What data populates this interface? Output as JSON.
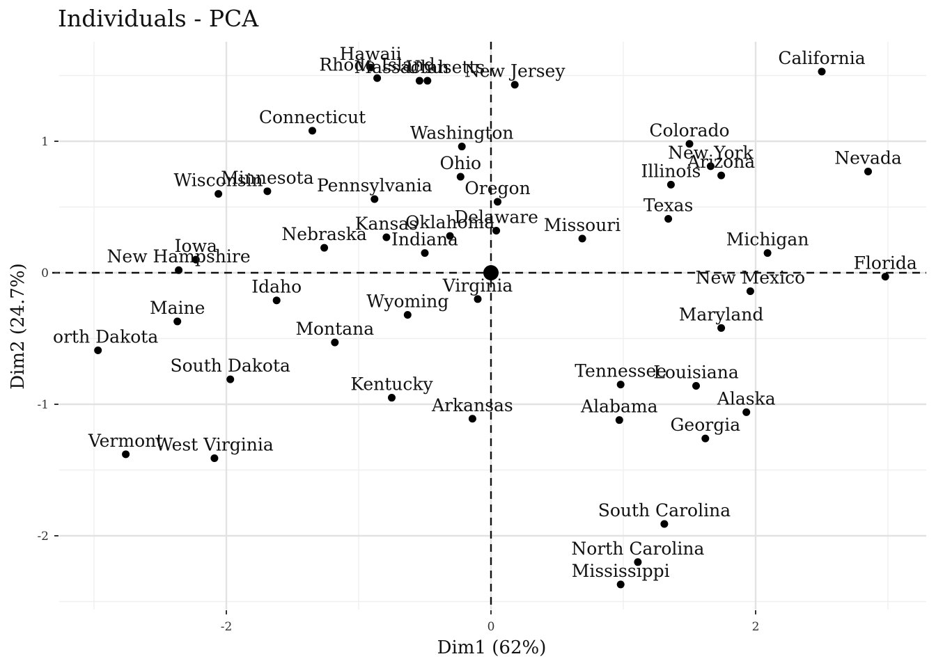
{
  "chart_data": {
    "type": "scatter",
    "title": "Individuals - PCA",
    "xlabel": "Dim1 (62%)",
    "ylabel": "Dim2 (24.7%)",
    "xlim": [
      -3.2,
      3.3
    ],
    "ylim": [
      -2.5,
      1.65
    ],
    "x_ticks": [
      -2,
      0,
      2
    ],
    "y_ticks": [
      -2,
      -1,
      0,
      1
    ],
    "x_tick_labels": [
      "-2",
      "0",
      "2"
    ],
    "y_tick_labels": [
      "-2",
      "-1",
      "0",
      "1"
    ],
    "grid": true,
    "reference_lines": {
      "x": 0,
      "y": 0,
      "style": "dashed"
    },
    "centroid": {
      "x": 0,
      "y": 0
    },
    "points": [
      {
        "label": "Hawaii",
        "x": -0.91,
        "y": 1.56
      },
      {
        "label": "Rhode Island",
        "x": -0.86,
        "y": 1.48
      },
      {
        "label": "Massachusetts",
        "x": -0.54,
        "y": 1.46
      },
      {
        "label": "Utah",
        "x": -0.48,
        "y": 1.46
      },
      {
        "label": "New Jersey",
        "x": 0.18,
        "y": 1.43
      },
      {
        "label": "California",
        "x": 2.5,
        "y": 1.53
      },
      {
        "label": "Connecticut",
        "x": -1.35,
        "y": 1.08
      },
      {
        "label": "Washington",
        "x": -0.22,
        "y": 0.96
      },
      {
        "label": "Colorado",
        "x": 1.5,
        "y": 0.98
      },
      {
        "label": "New York",
        "x": 1.66,
        "y": 0.81
      },
      {
        "label": "Arizona",
        "x": 1.74,
        "y": 0.74
      },
      {
        "label": "Nevada",
        "x": 2.85,
        "y": 0.77
      },
      {
        "label": "Ohio",
        "x": -0.23,
        "y": 0.73
      },
      {
        "label": "Illinois",
        "x": 1.36,
        "y": 0.67
      },
      {
        "label": "Wisconsin",
        "x": -2.06,
        "y": 0.6
      },
      {
        "label": "Minnesota",
        "x": -1.69,
        "y": 0.62
      },
      {
        "label": "Pennsylvania",
        "x": -0.88,
        "y": 0.56
      },
      {
        "label": "Oregon",
        "x": 0.05,
        "y": 0.54
      },
      {
        "label": "Texas",
        "x": 1.34,
        "y": 0.41
      },
      {
        "label": "Delaware",
        "x": 0.04,
        "y": 0.32
      },
      {
        "label": "Missouri",
        "x": 0.69,
        "y": 0.26
      },
      {
        "label": "Oklahoma",
        "x": -0.31,
        "y": 0.28
      },
      {
        "label": "Kansas",
        "x": -0.79,
        "y": 0.27
      },
      {
        "label": "Nebraska",
        "x": -1.26,
        "y": 0.19
      },
      {
        "label": "Indiana",
        "x": -0.5,
        "y": 0.15
      },
      {
        "label": "Michigan",
        "x": 2.09,
        "y": 0.15
      },
      {
        "label": "Iowa",
        "x": -2.23,
        "y": 0.1
      },
      {
        "label": "New Hampshire",
        "x": -2.36,
        "y": 0.02
      },
      {
        "label": "Florida",
        "x": 2.98,
        "y": -0.03
      },
      {
        "label": "New Mexico",
        "x": 1.96,
        "y": -0.14
      },
      {
        "label": "Idaho",
        "x": -1.62,
        "y": -0.21
      },
      {
        "label": "Virginia",
        "x": -0.1,
        "y": -0.2
      },
      {
        "label": "Wyoming",
        "x": -0.63,
        "y": -0.32
      },
      {
        "label": "Maine",
        "x": -2.37,
        "y": -0.37
      },
      {
        "label": "Maryland",
        "x": 1.74,
        "y": -0.42
      },
      {
        "label": "Montana",
        "x": -1.18,
        "y": -0.53
      },
      {
        "label": "North Dakota",
        "x": -2.97,
        "y": -0.59
      },
      {
        "label": "South Dakota",
        "x": -1.97,
        "y": -0.81
      },
      {
        "label": "Tennessee",
        "x": 0.98,
        "y": -0.85
      },
      {
        "label": "Louisiana",
        "x": 1.55,
        "y": -0.86
      },
      {
        "label": "Kentucky",
        "x": -0.75,
        "y": -0.95
      },
      {
        "label": "Alaska",
        "x": 1.93,
        "y": -1.06
      },
      {
        "label": "Arkansas",
        "x": -0.14,
        "y": -1.11
      },
      {
        "label": "Alabama",
        "x": 0.97,
        "y": -1.12
      },
      {
        "label": "Georgia",
        "x": 1.62,
        "y": -1.26
      },
      {
        "label": "Vermont",
        "x": -2.76,
        "y": -1.38
      },
      {
        "label": "West Virginia",
        "x": -2.09,
        "y": -1.41
      },
      {
        "label": "South Carolina",
        "x": 1.31,
        "y": -1.91
      },
      {
        "label": "North Carolina",
        "x": 1.11,
        "y": -2.2
      },
      {
        "label": "Mississippi",
        "x": 0.98,
        "y": -2.37
      }
    ]
  }
}
